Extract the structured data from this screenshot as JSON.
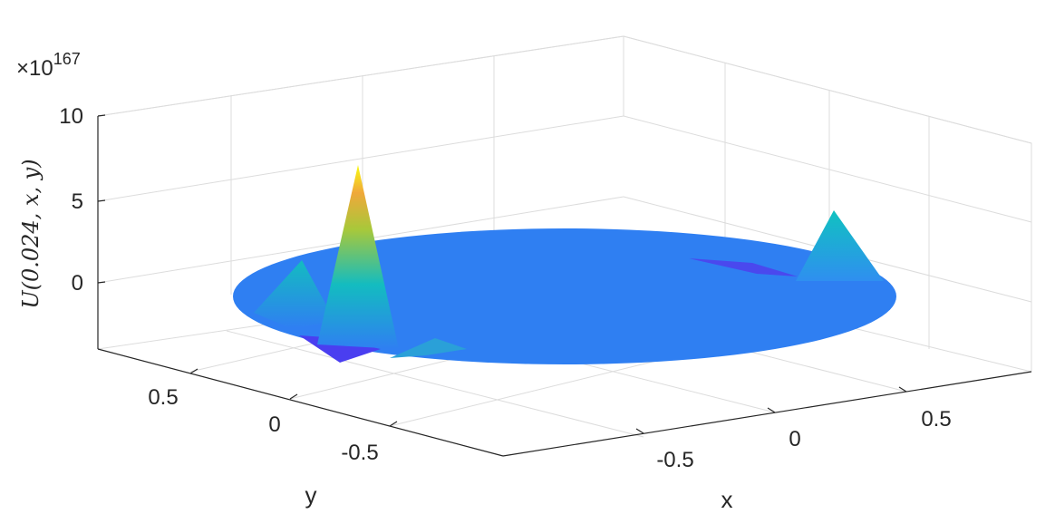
{
  "chart_data": {
    "type": "surface3d",
    "title": "",
    "xlabel": "x",
    "ylabel": "y",
    "zlabel": "U(0.024, x, y)",
    "z_exponent_label": "×10",
    "z_exponent": "167",
    "x_ticks": [
      "-0.5",
      "0",
      "0.5"
    ],
    "y_ticks": [
      "0.5",
      "0",
      "-0.5"
    ],
    "z_ticks": [
      "10",
      "5",
      "0"
    ],
    "zlim": [
      -4,
      10
    ],
    "domain": "unit disk",
    "grid": true,
    "colormap": "parula",
    "base_value": 0,
    "peaks": [
      {
        "x": -0.5,
        "y": 0.5,
        "z": 7.0
      },
      {
        "x": -0.75,
        "y": 0.35,
        "z": 2.5
      },
      {
        "x": 0.75,
        "y": -0.35,
        "z": 3.0
      }
    ],
    "troughs": [
      {
        "x": -0.55,
        "y": 0.6,
        "z": -1.0
      },
      {
        "x": 0.6,
        "y": -0.5,
        "z": -0.6
      }
    ]
  },
  "colors": {
    "surface_base": "#2f7ff2",
    "peak_top": "#f9fb0e",
    "peak_mid": "#13bcc0",
    "trough": "#4a3ef0",
    "grid": "#dcdcdc",
    "axis": "#262626"
  }
}
